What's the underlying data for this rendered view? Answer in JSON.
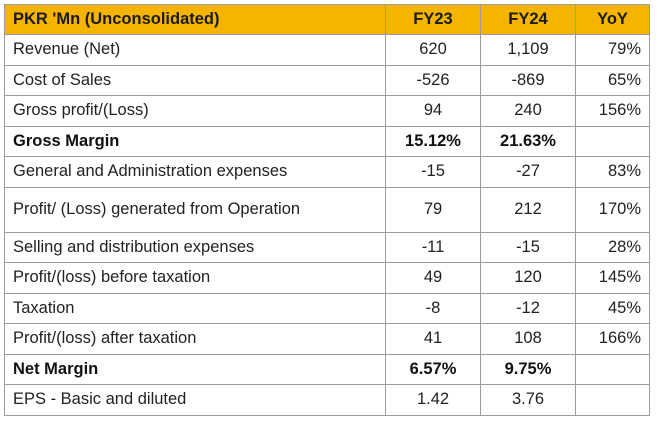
{
  "header": {
    "label": "PKR 'Mn (Unconsolidated)",
    "fy23": "FY23",
    "fy24": "FY24",
    "yoy": "YoY"
  },
  "rows": [
    {
      "label": "Revenue (Net)",
      "fy23": "620",
      "fy24": "1,109",
      "yoy": "79%"
    },
    {
      "label": "Cost of Sales",
      "fy23": "-526",
      "fy24": "-869",
      "yoy": "65%"
    },
    {
      "label": "Gross profit/(Loss)",
      "fy23": "94",
      "fy24": "240",
      "yoy": "156%"
    },
    {
      "label": "Gross Margin",
      "fy23": "15.12%",
      "fy24": "21.63%",
      "yoy": ""
    },
    {
      "label": "General and Administration expenses",
      "fy23": "-15",
      "fy24": "-27",
      "yoy": "83%"
    },
    {
      "label": "Profit/ (Loss) generated from Operation",
      "fy23": "79",
      "fy24": "212",
      "yoy": "170%"
    },
    {
      "label": "Selling and distribution expenses",
      "fy23": "-11",
      "fy24": "-15",
      "yoy": "28%"
    },
    {
      "label": "Profit/(loss) before taxation",
      "fy23": "49",
      "fy24": "120",
      "yoy": "145%"
    },
    {
      "label": "Taxation",
      "fy23": "-8",
      "fy24": "-12",
      "yoy": "45%"
    },
    {
      "label": "Profit/(loss) after taxation",
      "fy23": "41",
      "fy24": "108",
      "yoy": "166%"
    },
    {
      "label": "Net Margin",
      "fy23": "6.57%",
      "fy24": "9.75%",
      "yoy": ""
    },
    {
      "label": "EPS - Basic and diluted",
      "fy23": "1.42",
      "fy24": "3.76",
      "yoy": ""
    }
  ],
  "colors": {
    "header_bg": "#f5b400",
    "border": "#9a9a9a"
  }
}
